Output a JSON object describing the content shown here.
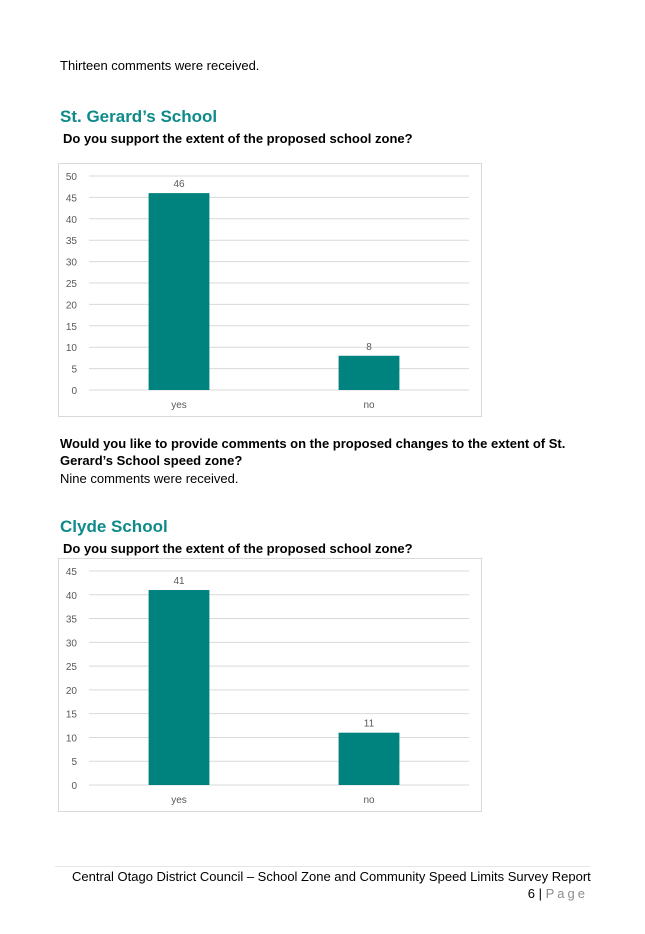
{
  "intro_text": "Thirteen comments were received.",
  "sections": [
    {
      "heading": "St. Gerard’s School",
      "question": "Do you support the extent of the proposed school zone?",
      "followup_question": "Would you like to provide comments on the proposed changes to the extent of St. Gerard’s School speed zone?",
      "followup_answer": "Nine comments were received."
    },
    {
      "heading": "Clyde School",
      "question": "Do you support the extent of the proposed school zone?"
    }
  ],
  "chart_data": [
    {
      "type": "bar",
      "categories": [
        "yes",
        "no"
      ],
      "values": [
        46,
        8
      ],
      "ylim": [
        0,
        50
      ],
      "yticks": [
        0,
        5,
        10,
        15,
        20,
        25,
        30,
        35,
        40,
        45,
        50
      ],
      "grid": true,
      "data_labels": true,
      "bar_color": "#00827f"
    },
    {
      "type": "bar",
      "categories": [
        "yes",
        "no"
      ],
      "values": [
        41,
        11
      ],
      "ylim": [
        0,
        45
      ],
      "yticks": [
        0,
        5,
        10,
        15,
        20,
        25,
        30,
        35,
        40,
        45
      ],
      "grid": true,
      "data_labels": true,
      "bar_color": "#00827f"
    }
  ],
  "footer": {
    "report_title": "Central Otago District Council – School Zone and Community Speed Limits Survey Report",
    "page_number": "6",
    "separator": "|",
    "page_word": "Page"
  },
  "colors": {
    "heading": "#0f8a8a",
    "bar": "#00827f",
    "gridline": "#d9d9d9",
    "axis_text": "#595959"
  }
}
